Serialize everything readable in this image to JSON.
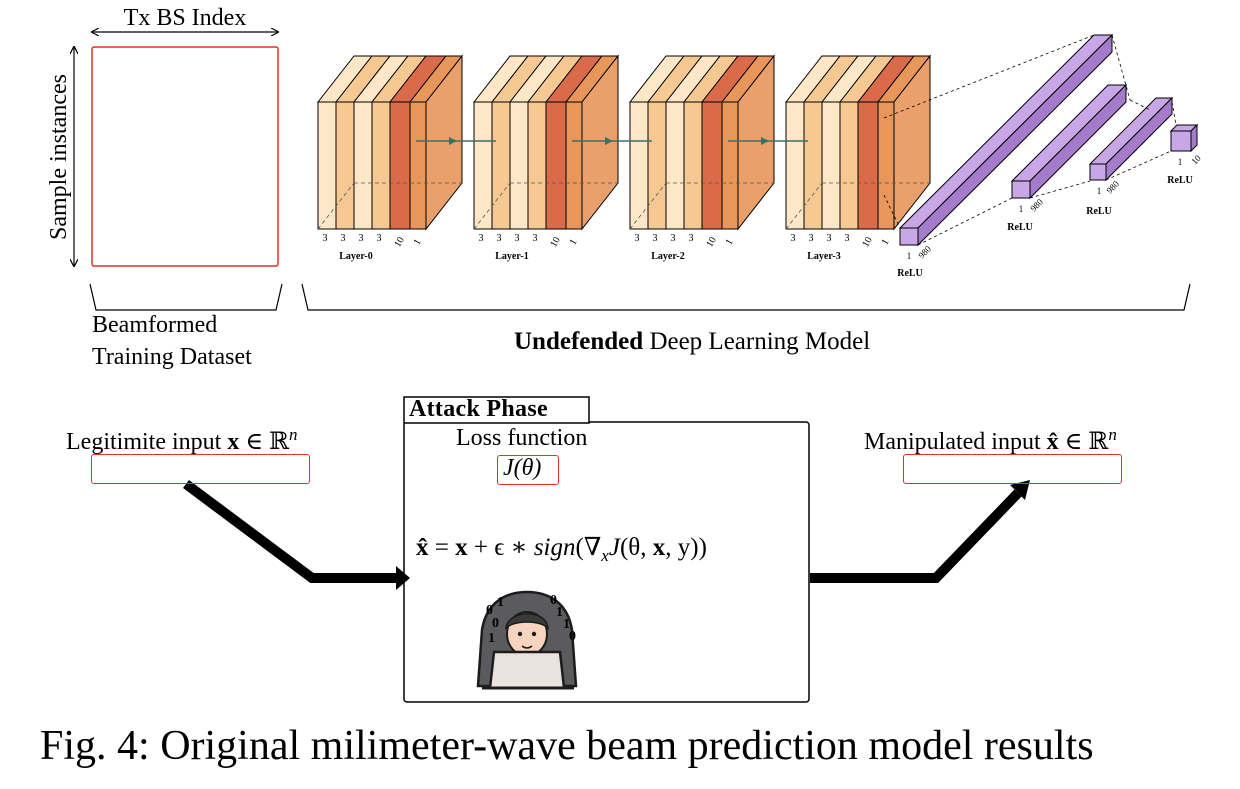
{
  "dataset": {
    "x_label": "Tx BS Index",
    "y_label": "Sample instances",
    "caption_line1": "Beamformed",
    "caption_line2": "Training Dataset"
  },
  "model": {
    "caption_bold": "Undefended",
    "caption_rest": " Deep Learning Model",
    "conv_layers": [
      {
        "name": "Layer-0",
        "dims": [
          "3",
          "3",
          "3",
          "3",
          "10",
          "1"
        ]
      },
      {
        "name": "Layer-1",
        "dims": [
          "3",
          "3",
          "3",
          "3",
          "10",
          "1"
        ]
      },
      {
        "name": "Layer-2",
        "dims": [
          "3",
          "3",
          "3",
          "3",
          "10",
          "1"
        ]
      },
      {
        "name": "Layer-3",
        "dims": [
          "3",
          "3",
          "3",
          "3",
          "10",
          "1"
        ]
      }
    ],
    "dense_layers": [
      {
        "activation": "ReLU",
        "dims": [
          "1",
          "980"
        ]
      },
      {
        "activation": "ReLU",
        "dims": [
          "1",
          "980"
        ]
      },
      {
        "activation": "ReLU",
        "dims": [
          "1",
          "980"
        ]
      },
      {
        "activation": "ReLU",
        "dims": [
          "1",
          "10"
        ]
      }
    ]
  },
  "attack": {
    "title": "Attack Phase",
    "loss_label": "Loss function",
    "loss_symbol": "J(θ)",
    "input_label": "Legitimite input",
    "output_label": "Manipulated input",
    "equation": {
      "lhs": "x̂",
      "rhs_a": " = ",
      "x": "x",
      "plus": " + ϵ ∗ ",
      "sign": "sign",
      "grad": "(∇",
      "sub": "x",
      "j": "J",
      "args_a": "(θ, ",
      "args_b": ", y))"
    },
    "input_set": " ∈ ℝ",
    "input_sup": "n",
    "input_var": "x",
    "output_var": "x̂",
    "hacker_bits": [
      "0",
      "1",
      "0",
      "0",
      "1",
      "1",
      "1",
      "0"
    ]
  },
  "figure_caption": "Fig. 4: Original milimeter-wave beam prediction model results",
  "colors": {
    "frame_red": "#e0312b",
    "conv_light": "#fde7c6",
    "conv_mid": "#f6c993",
    "conv_orange": "#e8965a",
    "conv_dark": "#d96a4a",
    "dense_purple": "#c9a6e6",
    "dense_purple_dark": "#a57ccc",
    "arrow_teal": "#3f6f66"
  }
}
